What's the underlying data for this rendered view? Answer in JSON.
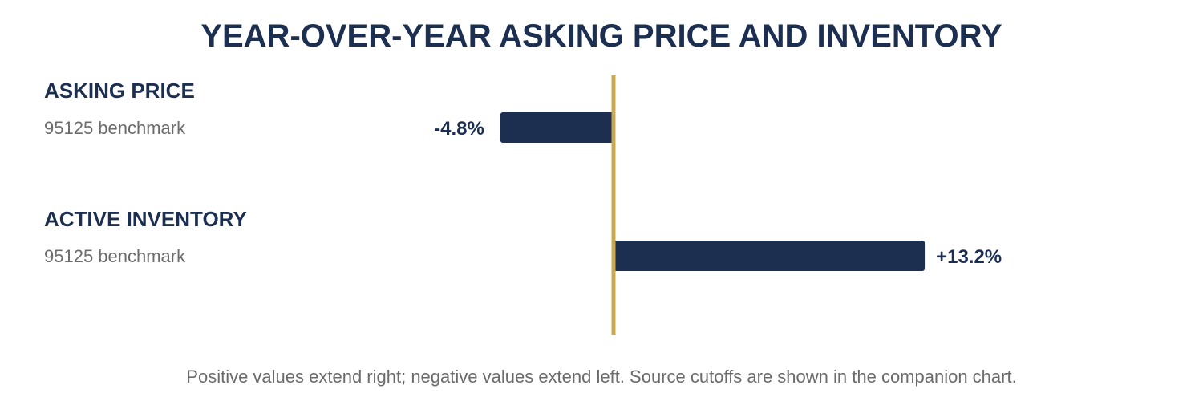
{
  "chart_data": {
    "type": "bar",
    "orientation": "horizontal",
    "title": "YEAR-OVER-YEAR ASKING PRICE AND INVENTORY",
    "categories": [
      "ASKING PRICE",
      "ACTIVE INVENTORY"
    ],
    "subtitles": [
      "95125 benchmark",
      "95125 benchmark"
    ],
    "values": [
      -4.8,
      13.2
    ],
    "value_labels": [
      "-4.8%",
      "+13.2%"
    ],
    "unit": "%",
    "baseline": 0,
    "xlim": [
      -20,
      20
    ],
    "grid": false,
    "footnote": "Positive values extend right; negative values extend left. Source cutoffs are shown in the companion chart."
  },
  "colors": {
    "bar": "#1c2f50",
    "baseline": "#c8a94f",
    "title": "#1c2f50",
    "subtext": "#6b6b6b"
  }
}
